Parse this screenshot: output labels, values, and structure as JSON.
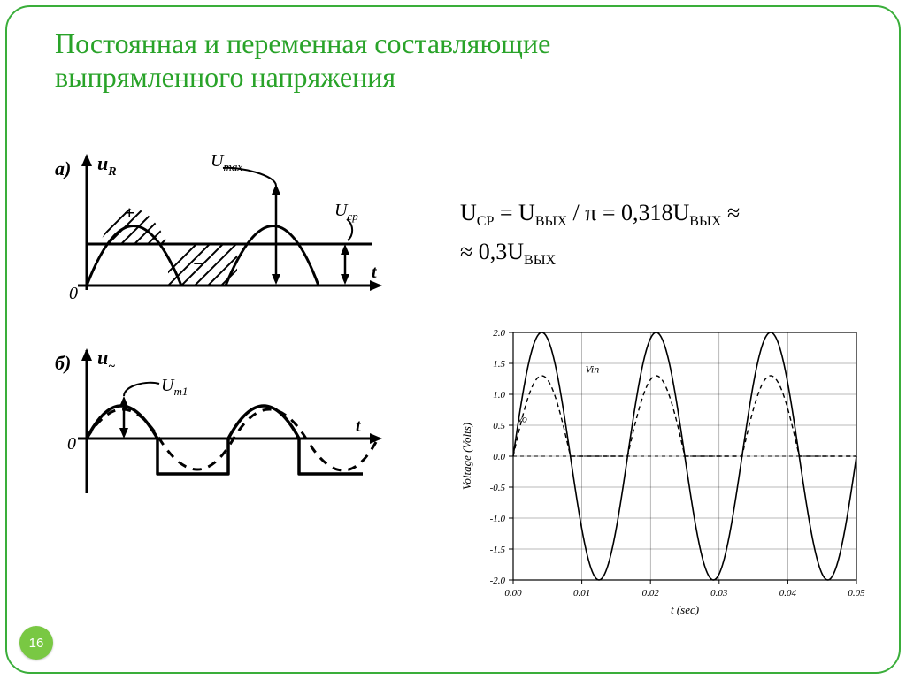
{
  "title": "Постоянная и переменная составляющие выпрямленного напряжения",
  "page_number": "16",
  "formula": {
    "line1_prefix": "U",
    "line1_sub1": "СР",
    "line1_middle1": " = U",
    "line1_sub2": "ВЫХ",
    "line1_middle2": " / π = 0,318U",
    "line1_sub3": "ВЫХ",
    "line1_tail": " ≈",
    "line2_head": "≈ 0,3U",
    "line2_sub": "ВЫХ"
  },
  "left_diagrams": {
    "stroke": "#000000",
    "fill_bg": "#ffffff",
    "a": {
      "panel_label": "а)",
      "y_label": "u",
      "y_label_sub": "R",
      "u_max": "U",
      "u_max_sub": "max",
      "u_cp": "U",
      "u_cp_sub": "ср",
      "x_label": "t",
      "zero": "0",
      "plus": "+",
      "minus": "−"
    },
    "b": {
      "panel_label": "б)",
      "y_label": "u",
      "y_label_sub": "~",
      "u_m1": "U",
      "u_m1_sub": "m1",
      "x_label": "t",
      "zero": "0"
    }
  },
  "right_chart": {
    "type": "line",
    "background_color": "#ffffff",
    "axis_color": "#000000",
    "grid_color": "#000000",
    "grid_width": 0.5,
    "xlabel": "t (sec)",
    "ylabel": "Voltage  (Volts)",
    "label_fontsize": 13,
    "tick_fontsize": 11,
    "xlim": [
      0.0,
      0.05
    ],
    "ylim": [
      -2.0,
      2.0
    ],
    "xticks": [
      0.0,
      0.01,
      0.02,
      0.03,
      0.04,
      0.05
    ],
    "yticks": [
      -2.0,
      -1.5,
      -1.0,
      -0.5,
      0.0,
      0.5,
      1.0,
      1.5,
      2.0
    ],
    "series": [
      {
        "name": "Vin",
        "label": "Vin",
        "color": "#000000",
        "style": "solid",
        "width": 1.6,
        "amplitude": 2.0,
        "period": 0.0166667,
        "label_x": 0.0105,
        "label_y": 1.35
      },
      {
        "name": "Vo",
        "label": "Vo",
        "color": "#000000",
        "style": "dashed",
        "width": 1.4,
        "amplitude": 1.3,
        "period": 0.0166667,
        "clip_negative": true,
        "label_x": 0.0005,
        "label_y": 0.55
      }
    ],
    "zero_line": {
      "style": "dashed",
      "color": "#000000",
      "width": 0.9
    }
  },
  "colors": {
    "frame_green": "#3aae3a",
    "title_green": "#29a329",
    "bubble_green": "#79c843"
  }
}
